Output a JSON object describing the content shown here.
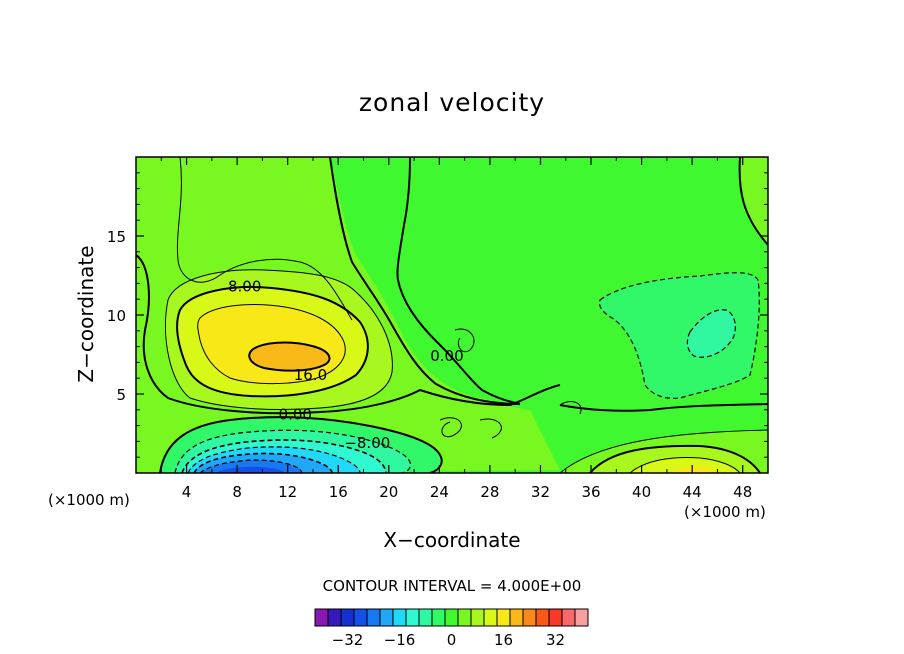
{
  "chart_data": {
    "type": "heatmap",
    "subtype": "filled-contour",
    "title": "zonal velocity",
    "xlabel": "X−coordinate",
    "ylabel": "Z−coordinate",
    "x_units_label": "(×1000 m)",
    "xlim": [
      0,
      50
    ],
    "ylim": [
      0,
      20
    ],
    "xticks": [
      4,
      8,
      12,
      16,
      20,
      24,
      28,
      32,
      36,
      40,
      44,
      48
    ],
    "yticks": [
      5,
      10,
      15
    ],
    "contour_interval_text": "CONTOUR INTERVAL = 4.000E+00",
    "contour_interval": 4,
    "contour_labels": [
      {
        "text": "8.00",
        "x": 8.6,
        "z": 11.8
      },
      {
        "text": "16.0",
        "x": 13.8,
        "z": 6.2
      },
      {
        "text": "0.00",
        "x": 24.6,
        "z": 7.4
      },
      {
        "text": "0.00",
        "x": 12.6,
        "z": 3.7
      },
      {
        "text": "−8.00",
        "x": 18.3,
        "z": 1.9
      }
    ],
    "features": [
      {
        "kind": "max",
        "approx_value": 18,
        "x": 11.5,
        "z": 7.3
      },
      {
        "kind": "min",
        "approx_value": -24,
        "x": 9,
        "z": 0.3
      },
      {
        "kind": "local min",
        "approx_value": -6,
        "x": 45,
        "z": 8.5
      },
      {
        "kind": "local max",
        "approx_value": 12,
        "x": 45,
        "z": 0.4
      }
    ],
    "colorbar": {
      "tick_labels": [
        "−32",
        "−16",
        "0",
        "16",
        "32"
      ],
      "tick_values": [
        -32,
        -16,
        0,
        16,
        32
      ],
      "colors": [
        "#8a18b0",
        "#3818b8",
        "#1430d0",
        "#1450e8",
        "#1878f0",
        "#20a8f8",
        "#20d8f8",
        "#30f8d0",
        "#30f8a0",
        "#30f868",
        "#40f830",
        "#78f820",
        "#a8f820",
        "#d8f818",
        "#f8e818",
        "#f8b818",
        "#f88818",
        "#f85818",
        "#f83828",
        "#f86868",
        "#f8a0a0"
      ],
      "bin_values": [
        -40,
        -36,
        -32,
        -28,
        -24,
        -20,
        -16,
        -12,
        -8,
        -4,
        0,
        4,
        8,
        12,
        16,
        20,
        24,
        28,
        32,
        36,
        40
      ]
    }
  }
}
